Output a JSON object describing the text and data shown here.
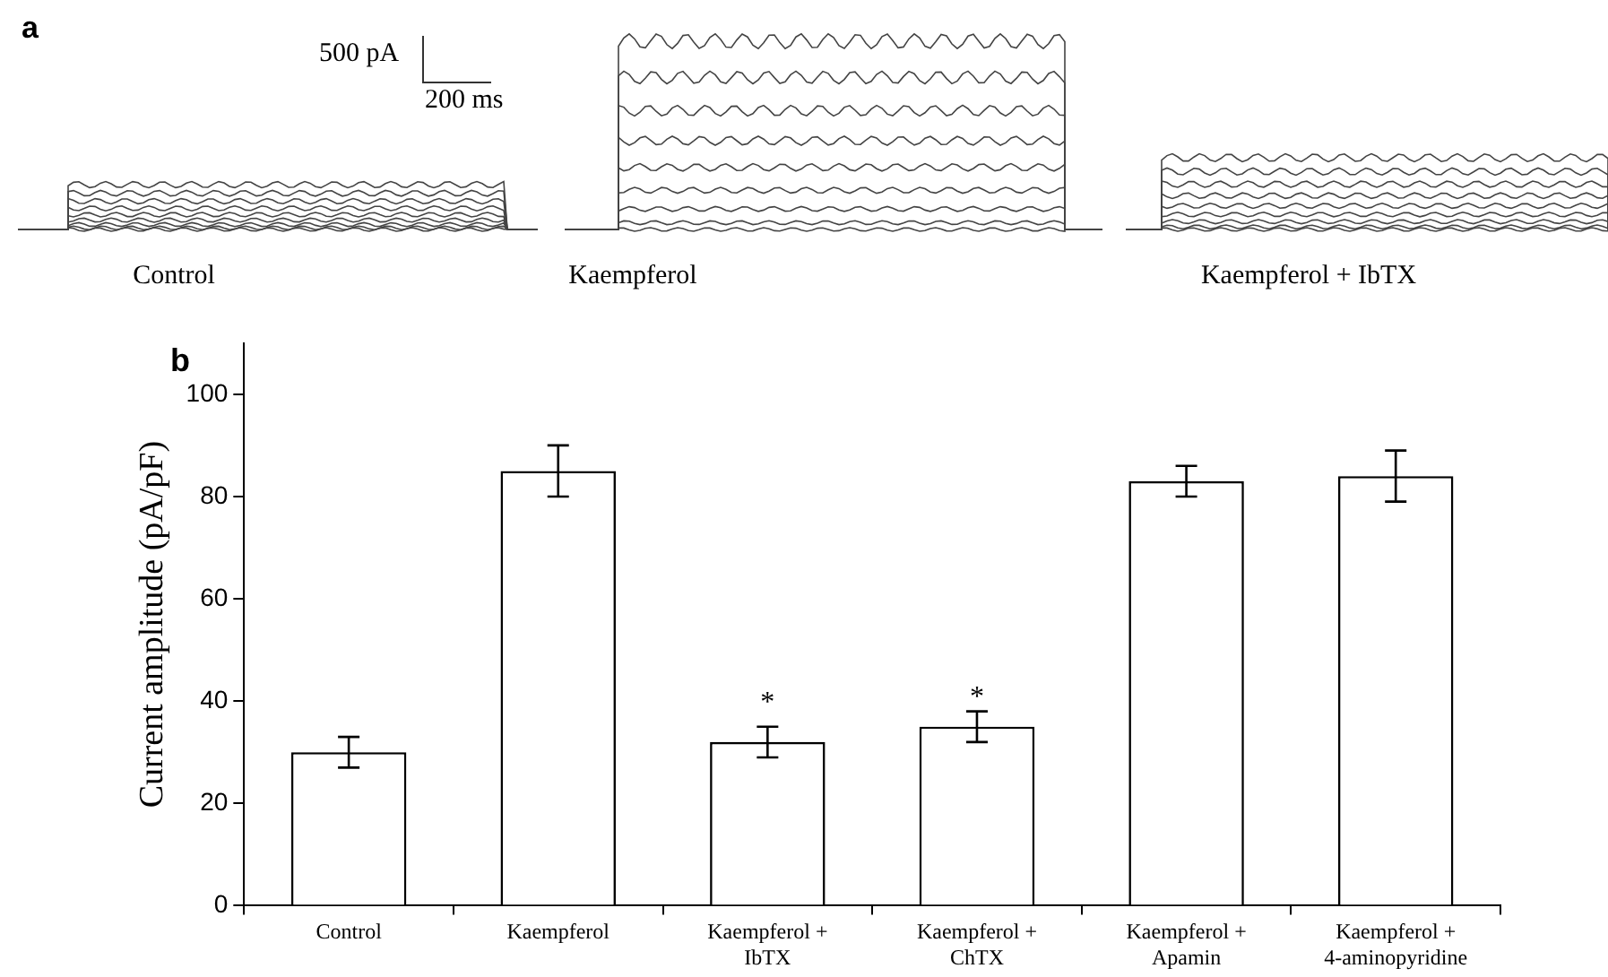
{
  "chart_data": [
    {
      "type": "other",
      "title": "a",
      "annotations": [
        "500 pA",
        "200 ms",
        "Control",
        "Kaempferol",
        "Kaempferol + IbTX"
      ]
    },
    {
      "type": "bar",
      "title": "b",
      "ylabel": "Current amplitude (pA/pF)",
      "categories": [
        "Control",
        "Kaempferol",
        "Kaempferol + IbTX",
        "Kaempferol + ChTX",
        "Kaempferol + Apamin",
        "Kaempferol + 4-aminopyridine"
      ],
      "values": [
        30,
        85,
        32,
        35,
        83,
        84
      ],
      "errors": [
        3,
        5,
        3,
        3,
        3,
        5
      ],
      "color": "#ffffff",
      "ylim": [
        0,
        110
      ],
      "yticks": [
        0,
        20,
        40,
        60,
        80,
        100
      ],
      "grid": false,
      "legend": false,
      "annotations": [
        "*",
        "*"
      ]
    }
  ]
}
